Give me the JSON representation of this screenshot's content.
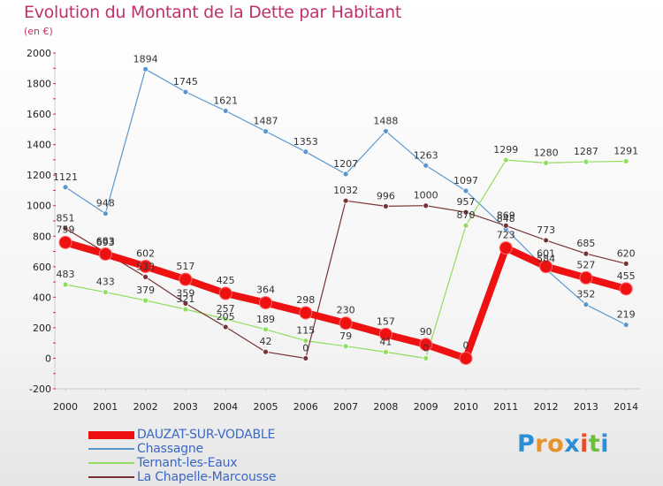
{
  "title": "Evolution du Montant de la Dette par Habitant",
  "subtitle": "(en €)",
  "logo_text": "Proxiti",
  "chart_data": {
    "type": "line",
    "x": [
      "2000",
      "2001",
      "2002",
      "2003",
      "2004",
      "2005",
      "2006",
      "2007",
      "2008",
      "2009",
      "2010",
      "2011",
      "2012",
      "2013",
      "2014"
    ],
    "ylim": [
      -200,
      2000
    ],
    "yticks": [
      -200,
      0,
      200,
      400,
      600,
      800,
      1000,
      1200,
      1400,
      1600,
      1800,
      2000
    ],
    "grid": false,
    "legend_position": "bottom-left",
    "series": [
      {
        "name": "DAUZAT-SUR-VODABLE",
        "color": "#ee1111",
        "values": [
          759,
          683,
          602,
          517,
          425,
          364,
          298,
          230,
          157,
          90,
          0,
          723,
          601,
          527,
          455
        ]
      },
      {
        "name": "Chassagne",
        "color": "#5b96cf",
        "values": [
          1121,
          948,
          1894,
          1745,
          1621,
          1487,
          1353,
          1207,
          1488,
          1263,
          1097,
          848,
          584,
          352,
          219
        ]
      },
      {
        "name": "Ternant-les-Eaux",
        "color": "#90dd60",
        "values": [
          483,
          433,
          379,
          321,
          257,
          189,
          115,
          79,
          41,
          0,
          870,
          1299,
          1280,
          1287,
          1291
        ]
      },
      {
        "name": "La Chapelle-Marcousse",
        "color": "#773333",
        "values": [
          851,
          693,
          533,
          359,
          205,
          42,
          0,
          1032,
          996,
          1000,
          957,
          869,
          773,
          685,
          620
        ]
      }
    ]
  }
}
